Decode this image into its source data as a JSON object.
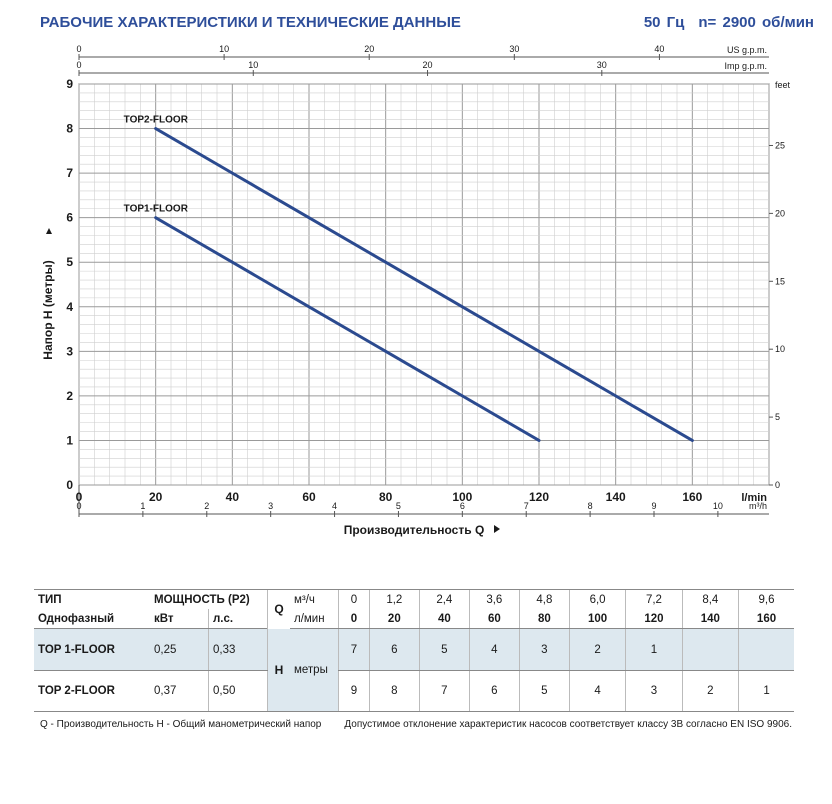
{
  "header": {
    "title": "РАБОЧИЕ ХАРАКТЕРИСТИКИ И ТЕХНИЧЕСКИЕ ДАННЫЕ",
    "frequency": "50 Гц",
    "speed": "n= 2900 об/мин"
  },
  "chart_data": {
    "type": "line",
    "xlabel": "Производительность Q",
    "ylabel": "Напор H (метры)",
    "x_unit": "l/min",
    "xlim": [
      0,
      180
    ],
    "ylim": [
      0,
      9
    ],
    "grid": true,
    "x_ticks": [
      "0",
      "20",
      "40",
      "60",
      "80",
      "100",
      "120",
      "140",
      "160"
    ],
    "y_ticks": [
      "0",
      "1",
      "2",
      "3",
      "4",
      "5",
      "6",
      "7",
      "8",
      "9"
    ],
    "secondary_axes": {
      "us_gpm": {
        "label": "US g.p.m.",
        "ticks": [
          "0",
          "10",
          "20",
          "30",
          "40"
        ]
      },
      "imp_gpm": {
        "label": "Imp g.p.m.",
        "ticks": [
          "0",
          "10",
          "20",
          "30"
        ]
      },
      "feet": {
        "label": "feet",
        "ticks": [
          "0",
          "5",
          "10",
          "15",
          "20",
          "25"
        ]
      },
      "m3h": {
        "label": "m³/h",
        "ticks": [
          "0",
          "1",
          "2",
          "3",
          "4",
          "5",
          "6",
          "7",
          "8",
          "9",
          "10"
        ]
      }
    },
    "series": [
      {
        "name": "TOP1-FLOOR",
        "x": [
          20,
          40,
          60,
          80,
          100,
          120
        ],
        "y": [
          6,
          5,
          4,
          3,
          2,
          1
        ]
      },
      {
        "name": "TOP2-FLOOR",
        "x": [
          20,
          40,
          60,
          80,
          100,
          120,
          140,
          160
        ],
        "y": [
          8,
          7,
          6,
          5,
          4,
          3,
          2,
          1
        ]
      }
    ],
    "line_color": "#2b4a8f"
  },
  "table": {
    "h_type": "ТИП",
    "h_phase": "Однофазный",
    "h_power": "МОЩНОСТЬ (P2)",
    "h_kw": "кВт",
    "h_hp": "л.с.",
    "q_label": "Q",
    "q_unit1": "м³/ч",
    "q_unit2": "л/мин",
    "m3h": [
      "0",
      "1,2",
      "2,4",
      "3,6",
      "4,8",
      "6,0",
      "7,2",
      "8,4",
      "9,6"
    ],
    "lmin": [
      "0",
      "20",
      "40",
      "60",
      "80",
      "100",
      "120",
      "140",
      "160"
    ],
    "h_label": "H",
    "h_unit": "метры",
    "rows": [
      {
        "model": "TOP 1-FLOOR",
        "kw": "0,25",
        "hp": "0,33",
        "heads": [
          "7",
          "6",
          "5",
          "4",
          "3",
          "2",
          "1",
          "",
          ""
        ]
      },
      {
        "model": "TOP 2-FLOOR",
        "kw": "0,37",
        "hp": "0,50",
        "heads": [
          "9",
          "8",
          "7",
          "6",
          "5",
          "4",
          "3",
          "2",
          "1"
        ]
      }
    ]
  },
  "footer": {
    "legend": "Q - Производительность   H - Общий манометрический напор",
    "note": "Допустимое отклонение характеристик насосов соответствует классу 3В согласно EN ISO 9906."
  }
}
